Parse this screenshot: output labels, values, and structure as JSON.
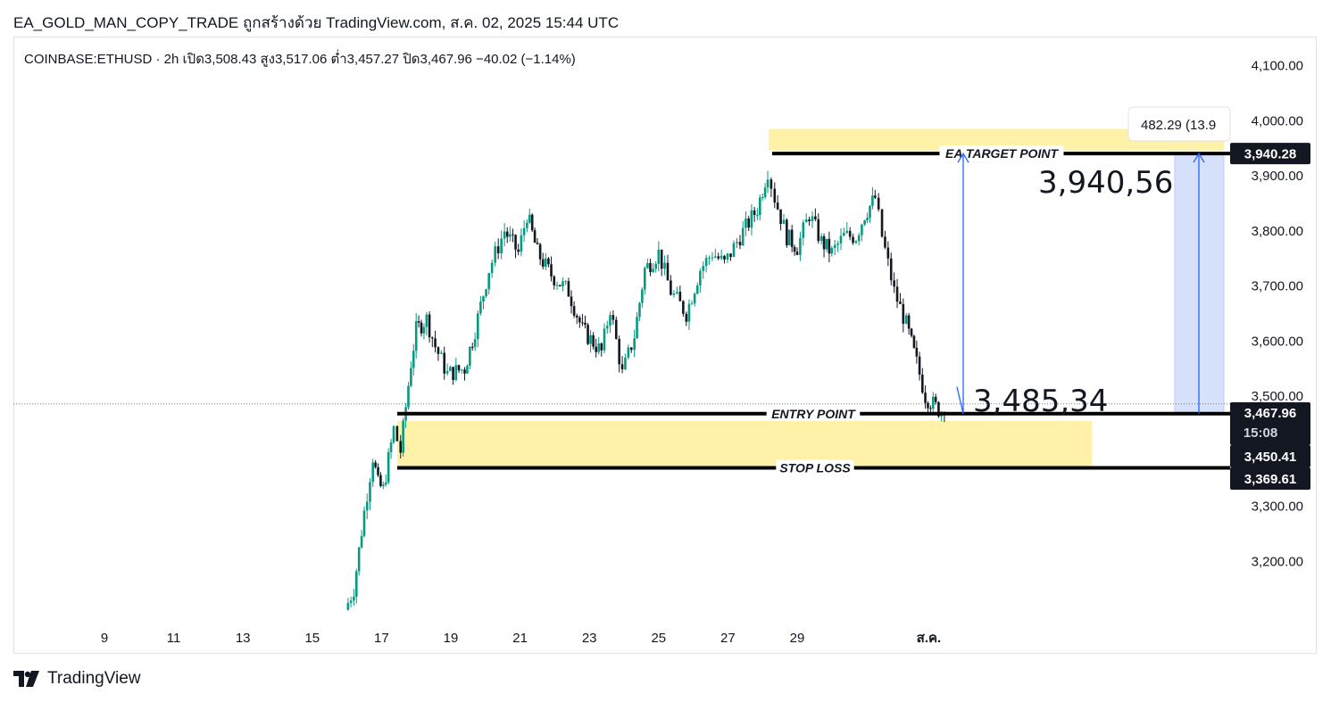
{
  "header": {
    "title": "EA_GOLD_MAN_COPY_TRADE ถูกสร้างด้วย TradingView.com, ส.ค. 02, 2025 15:44 UTC"
  },
  "legend": {
    "text": "COINBASE:ETHUSD · 2h  เปิด3,508.43  สูง3,517.06  ต่ำ3,457.27  ปิด3,467.96  −40.02 (−1.14%)"
  },
  "footer": {
    "brand": "TradingView"
  },
  "colors": {
    "up": "#089981",
    "down": "#131722",
    "zone": "#fff2a8",
    "measure_fill": "#d6e2fb",
    "arrow": "#2962ff",
    "tag": "#131722"
  },
  "chart_data": {
    "type": "candlestick",
    "symbol": "COINBASE:ETHUSD",
    "interval": "2h",
    "ylim": [
      3100,
      4190
    ],
    "y_ticks": [
      "4,100.00",
      "4,000.00",
      "3,900.00",
      "3,800.00",
      "3,700.00",
      "3,600.00",
      "3,500.00",
      "3,300.00",
      "3,200.00"
    ],
    "x_ticks": [
      "9",
      "11",
      "13",
      "15",
      "17",
      "19",
      "21",
      "23",
      "25",
      "27",
      "29",
      "ส.ค."
    ],
    "x_day_range": [
      8,
      35
    ],
    "waypoints": [
      [
        15.95,
        3112
      ],
      [
        16.2,
        3150
      ],
      [
        16.5,
        3290
      ],
      [
        16.75,
        3390
      ],
      [
        16.9,
        3340
      ],
      [
        17.05,
        3330
      ],
      [
        17.35,
        3440
      ],
      [
        17.55,
        3400
      ],
      [
        17.85,
        3560
      ],
      [
        18.0,
        3620
      ],
      [
        18.3,
        3640
      ],
      [
        18.55,
        3590
      ],
      [
        18.9,
        3540
      ],
      [
        19.4,
        3550
      ],
      [
        19.7,
        3620
      ],
      [
        20.1,
        3730
      ],
      [
        20.55,
        3800
      ],
      [
        20.95,
        3760
      ],
      [
        21.2,
        3830
      ],
      [
        21.5,
        3760
      ],
      [
        21.9,
        3720
      ],
      [
        22.4,
        3690
      ],
      [
        22.8,
        3620
      ],
      [
        23.35,
        3580
      ],
      [
        23.6,
        3660
      ],
      [
        23.95,
        3540
      ],
      [
        24.3,
        3610
      ],
      [
        24.6,
        3730
      ],
      [
        25.0,
        3760
      ],
      [
        25.35,
        3690
      ],
      [
        25.8,
        3650
      ],
      [
        26.2,
        3730
      ],
      [
        26.55,
        3760
      ],
      [
        26.9,
        3740
      ],
      [
        27.35,
        3790
      ],
      [
        27.85,
        3840
      ],
      [
        28.15,
        3910
      ],
      [
        28.35,
        3860
      ],
      [
        28.7,
        3790
      ],
      [
        29.0,
        3770
      ],
      [
        29.35,
        3830
      ],
      [
        29.7,
        3780
      ],
      [
        30.0,
        3760
      ],
      [
        30.35,
        3790
      ],
      [
        30.7,
        3790
      ],
      [
        30.95,
        3830
      ],
      [
        31.25,
        3860
      ],
      [
        31.45,
        3790
      ],
      [
        31.8,
        3690
      ],
      [
        32.15,
        3630
      ],
      [
        32.45,
        3560
      ],
      [
        32.7,
        3500
      ],
      [
        33.0,
        3480
      ],
      [
        33.25,
        3467.96
      ]
    ],
    "levels": {
      "ea_target": 3940.28,
      "entry": 3467.96,
      "stop_loss": 3369.61,
      "zone_low": 3450.41,
      "top_zone": [
        3946,
        3985
      ],
      "bottom_zone": [
        3370,
        3455
      ]
    },
    "price_tags": {
      "ea_target": "3,940.28",
      "current": "3,467.96",
      "countdown": "15:08",
      "zone_low": "3,450.41",
      "stop_loss": "3,369.61"
    },
    "annotations": {
      "ea_target_label": "EA TARGET POINT",
      "entry_label": "ENTRY POINT",
      "stop_label": "STOP LOSS",
      "big_target": "3,940,56",
      "big_entry": "3,485,34",
      "measure": "482.29 (13.9"
    }
  }
}
